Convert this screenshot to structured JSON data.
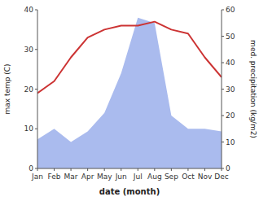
{
  "chart_data": {
    "type": "line",
    "categories": [
      "Jan",
      "Feb",
      "Mar",
      "Apr",
      "May",
      "Jun",
      "Jul",
      "Aug",
      "Sep",
      "Oct",
      "Nov",
      "Dec"
    ],
    "xlabel": "date (month)",
    "ylabel": "max temp (C)",
    "y2label": "med. precipitation (kg/m2)",
    "ylim": [
      0,
      40
    ],
    "yticks": [
      0,
      10,
      20,
      30,
      40
    ],
    "y2lim": [
      0,
      60
    ],
    "y2ticks": [
      0,
      10,
      20,
      30,
      40,
      50,
      60
    ],
    "grid": false,
    "series": [
      {
        "type": "area",
        "axis": "y2",
        "color": "#aabbee",
        "values": [
          11,
          15,
          10,
          14,
          21,
          36,
          57,
          55,
          20,
          15,
          15,
          14
        ]
      },
      {
        "type": "line",
        "color": "#cc3333",
        "values": [
          19,
          22,
          28,
          33,
          35,
          36,
          36,
          37,
          35,
          34,
          28,
          23
        ]
      }
    ]
  }
}
